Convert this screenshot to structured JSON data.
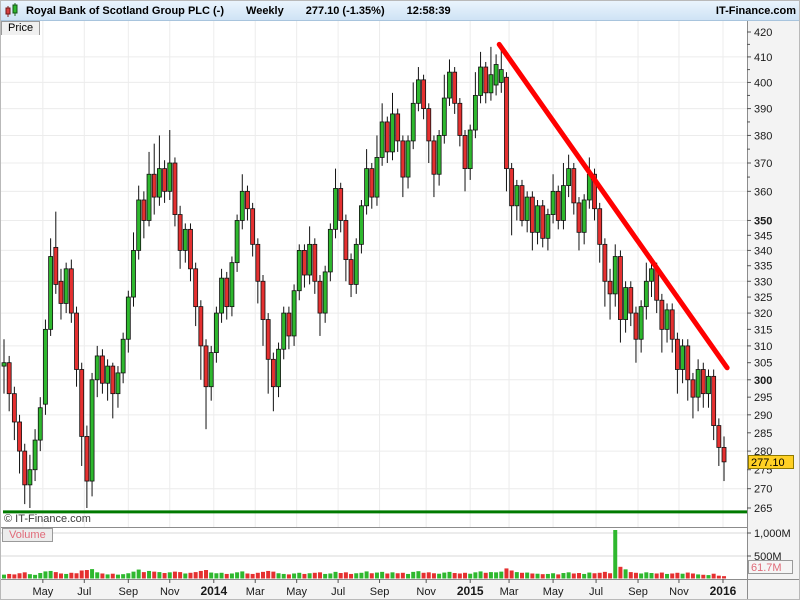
{
  "header": {
    "icon": "candlestick-icon",
    "title": "Royal Bank of Scotland Group PLC (-)",
    "timeframe": "Weekly",
    "quote": "277.10 (-1.35%)",
    "time": "12:58:39",
    "brand": "IT-Finance.com"
  },
  "tabs": {
    "price": "Price",
    "volume": "Volume"
  },
  "watermark": "© IT-Finance.com",
  "price_axis": {
    "current": {
      "label": "277.10",
      "value": 277.1
    },
    "labels": [
      {
        "v": 420
      },
      {
        "v": 410
      },
      {
        "v": 400
      },
      {
        "v": 390
      },
      {
        "v": 380
      },
      {
        "v": 370
      },
      {
        "v": 360
      },
      {
        "v": 350,
        "bold": true
      },
      {
        "v": 345
      },
      {
        "v": 340
      },
      {
        "v": 335
      },
      {
        "v": 330
      },
      {
        "v": 325
      },
      {
        "v": 320
      },
      {
        "v": 315
      },
      {
        "v": 310
      },
      {
        "v": 305
      },
      {
        "v": 300,
        "bold": true
      },
      {
        "v": 295
      },
      {
        "v": 290
      },
      {
        "v": 285
      },
      {
        "v": 280
      },
      {
        "v": 275
      },
      {
        "v": 270
      },
      {
        "v": 265
      }
    ],
    "minor_ticks": [
      415,
      405,
      395,
      385,
      375,
      365
    ],
    "gridlines": [
      410,
      400,
      390,
      380,
      370,
      360,
      350,
      340,
      330,
      320,
      310,
      300,
      290,
      280,
      270
    ]
  },
  "x_axis": {
    "ticks": [
      {
        "label": "May",
        "week": 7.5
      },
      {
        "label": "Jul",
        "week": 15.5
      },
      {
        "label": "Sep",
        "week": 24
      },
      {
        "label": "Nov",
        "week": 32
      },
      {
        "label": "2014",
        "week": 40.5,
        "bold": true
      },
      {
        "label": "Mar",
        "week": 48.5
      },
      {
        "label": "May",
        "week": 56.5
      },
      {
        "label": "Jul",
        "week": 64.5
      },
      {
        "label": "Sep",
        "week": 72.5
      },
      {
        "label": "Nov",
        "week": 81.5
      },
      {
        "label": "2015",
        "week": 90,
        "bold": true
      },
      {
        "label": "Mar",
        "week": 97.5
      },
      {
        "label": "May",
        "week": 106
      },
      {
        "label": "Jul",
        "week": 114.3
      },
      {
        "label": "Sep",
        "week": 122.4
      },
      {
        "label": "Nov",
        "week": 130.3
      },
      {
        "label": "2016",
        "week": 138.8,
        "bold": true
      }
    ]
  },
  "volume_axis": {
    "ticks": [
      {
        "label": "1,000M",
        "value": 1000
      },
      {
        "label": "500M",
        "value": 500
      }
    ],
    "current": {
      "label": "61.7M",
      "value": 61.7
    }
  },
  "colors": {
    "up": "#2eb82e",
    "down": "#e53030",
    "candle_stroke": "#111111",
    "trend": "#ff0000",
    "support": "#007a00",
    "grid": "#ececec",
    "vol_grid": "#d9d9d9",
    "axis_bg": "#f3f3f3",
    "divider": "#8c8c8c",
    "tick": "#555555",
    "label": "#1a1a1a"
  },
  "chart_data": {
    "type": "candlestick",
    "title": "Royal Bank of Scotland Group PLC - Weekly",
    "period": "Apr 2013 - Jan 2016",
    "yscale": "log",
    "ylim": [
      263,
      422
    ],
    "last_close": 277.1,
    "support_line_price": 264,
    "trend_line": {
      "week1": 95.6,
      "price1": 415,
      "week2": 139.6,
      "price2": 303.5
    },
    "volume_ylim_m": [
      0,
      1100
    ],
    "last_volume_m": 61.7,
    "candles_ohlc": [
      [
        304,
        312,
        296,
        305
      ],
      [
        305,
        307,
        291,
        296
      ],
      [
        296,
        298,
        283,
        288
      ],
      [
        288,
        290,
        274,
        280
      ],
      [
        280,
        282,
        266,
        271
      ],
      [
        271,
        279,
        265,
        275
      ],
      [
        275,
        286,
        272,
        283
      ],
      [
        283,
        295,
        280,
        292
      ],
      [
        293,
        318,
        290,
        315
      ],
      [
        315,
        344,
        313,
        338
      ],
      [
        341,
        353,
        326,
        329
      ],
      [
        330,
        334,
        318,
        323
      ],
      [
        323,
        336,
        320,
        334
      ],
      [
        334,
        337,
        317,
        320
      ],
      [
        320,
        322,
        298,
        303
      ],
      [
        303,
        305,
        276,
        284
      ],
      [
        284,
        287,
        265,
        272
      ],
      [
        272,
        302,
        268,
        300
      ],
      [
        300,
        310,
        295,
        307
      ],
      [
        307,
        309,
        296,
        299
      ],
      [
        299,
        306,
        294,
        304
      ],
      [
        304,
        305,
        289,
        296
      ],
      [
        296,
        304,
        292,
        302
      ],
      [
        302,
        314,
        299,
        312
      ],
      [
        312,
        327,
        308,
        325
      ],
      [
        325,
        346,
        322,
        340
      ],
      [
        340,
        362,
        337,
        357
      ],
      [
        357,
        360,
        344,
        350
      ],
      [
        350,
        374,
        348,
        366
      ],
      [
        366,
        377,
        352,
        358
      ],
      [
        358,
        380,
        355,
        368
      ],
      [
        368,
        371,
        356,
        360
      ],
      [
        360,
        382,
        357,
        370
      ],
      [
        370,
        372,
        348,
        352
      ],
      [
        352,
        355,
        334,
        340
      ],
      [
        340,
        349,
        336,
        347
      ],
      [
        347,
        349,
        330,
        334
      ],
      [
        334,
        336,
        316,
        322
      ],
      [
        322,
        324,
        300,
        310
      ],
      [
        310,
        312,
        286,
        298
      ],
      [
        298,
        310,
        294,
        308
      ],
      [
        308,
        322,
        305,
        320
      ],
      [
        320,
        334,
        317,
        331
      ],
      [
        331,
        333,
        318,
        322
      ],
      [
        322,
        338,
        319,
        336
      ],
      [
        336,
        352,
        333,
        350
      ],
      [
        350,
        366,
        347,
        360
      ],
      [
        360,
        362,
        350,
        354
      ],
      [
        354,
        356,
        338,
        342
      ],
      [
        342,
        344,
        323,
        330
      ],
      [
        330,
        332,
        310,
        318
      ],
      [
        318,
        320,
        296,
        306
      ],
      [
        306,
        308,
        291,
        298
      ],
      [
        298,
        311,
        295,
        309
      ],
      [
        309,
        322,
        306,
        320
      ],
      [
        320,
        322,
        309,
        313
      ],
      [
        313,
        329,
        310,
        327
      ],
      [
        327,
        342,
        324,
        340
      ],
      [
        340,
        342,
        328,
        332
      ],
      [
        332,
        348,
        329,
        342
      ],
      [
        342,
        344,
        326,
        330
      ],
      [
        330,
        332,
        313,
        320
      ],
      [
        320,
        335,
        317,
        333
      ],
      [
        333,
        349,
        330,
        347
      ],
      [
        347,
        368,
        344,
        361
      ],
      [
        361,
        363,
        346,
        350
      ],
      [
        350,
        352,
        330,
        337
      ],
      [
        337,
        339,
        325,
        329
      ],
      [
        329,
        344,
        326,
        342
      ],
      [
        342,
        357,
        339,
        355
      ],
      [
        355,
        375,
        352,
        368
      ],
      [
        368,
        370,
        354,
        358
      ],
      [
        358,
        380,
        355,
        372
      ],
      [
        372,
        392,
        369,
        385
      ],
      [
        385,
        387,
        370,
        374
      ],
      [
        374,
        396,
        371,
        388
      ],
      [
        388,
        390,
        374,
        378
      ],
      [
        378,
        380,
        358,
        365
      ],
      [
        365,
        380,
        361,
        378
      ],
      [
        378,
        400,
        375,
        392
      ],
      [
        392,
        406,
        389,
        401
      ],
      [
        401,
        403,
        386,
        390
      ],
      [
        390,
        392,
        370,
        378
      ],
      [
        378,
        380,
        358,
        366
      ],
      [
        366,
        382,
        362,
        380
      ],
      [
        380,
        403,
        377,
        394
      ],
      [
        394,
        409,
        391,
        404
      ],
      [
        404,
        406,
        388,
        392
      ],
      [
        392,
        394,
        376,
        380
      ],
      [
        380,
        382,
        360,
        368
      ],
      [
        368,
        384,
        364,
        382
      ],
      [
        382,
        404,
        379,
        395
      ],
      [
        395,
        412,
        392,
        406
      ],
      [
        406,
        408,
        392,
        396
      ],
      [
        396,
        414,
        393,
        403
      ],
      [
        399,
        411,
        395,
        407
      ],
      [
        400,
        414,
        396,
        405
      ],
      [
        402,
        404,
        360,
        368
      ],
      [
        368,
        370,
        345,
        355
      ],
      [
        355,
        364,
        350,
        362
      ],
      [
        362,
        364,
        348,
        350
      ],
      [
        350,
        360,
        346,
        358
      ],
      [
        358,
        360,
        340,
        346
      ],
      [
        346,
        357,
        342,
        355
      ],
      [
        355,
        357,
        341,
        344
      ],
      [
        344,
        354,
        340,
        352
      ],
      [
        352,
        366,
        349,
        360
      ],
      [
        360,
        362,
        347,
        350
      ],
      [
        350,
        370,
        347,
        362
      ],
      [
        362,
        373,
        358,
        368
      ],
      [
        368,
        370,
        352,
        356
      ],
      [
        356,
        358,
        340,
        346
      ],
      [
        346,
        359,
        342,
        357
      ],
      [
        357,
        372,
        354,
        366
      ],
      [
        366,
        368,
        350,
        354
      ],
      [
        354,
        356,
        336,
        342
      ],
      [
        342,
        344,
        322,
        330
      ],
      [
        330,
        334,
        318,
        326
      ],
      [
        326,
        342,
        322,
        338
      ],
      [
        338,
        340,
        311,
        318
      ],
      [
        318,
        330,
        314,
        328
      ],
      [
        328,
        330,
        316,
        320
      ],
      [
        320,
        322,
        305,
        312
      ],
      [
        312,
        324,
        308,
        322
      ],
      [
        322,
        336,
        318,
        330
      ],
      [
        330,
        338,
        325,
        334
      ],
      [
        334,
        336,
        320,
        324
      ],
      [
        324,
        326,
        308,
        315
      ],
      [
        315,
        323,
        311,
        321
      ],
      [
        321,
        323,
        308,
        312
      ],
      [
        312,
        314,
        296,
        303
      ],
      [
        303,
        312,
        299,
        310
      ],
      [
        310,
        312,
        294,
        300
      ],
      [
        300,
        302,
        289,
        295
      ],
      [
        295,
        306,
        291,
        303
      ],
      [
        303,
        305,
        292,
        296
      ],
      [
        296,
        303,
        292,
        301
      ],
      [
        301,
        303,
        283,
        287
      ],
      [
        287,
        289,
        276,
        281
      ],
      [
        281,
        284,
        272,
        277.1
      ]
    ],
    "volumes_m": [
      95,
      110,
      100,
      125,
      145,
      105,
      90,
      130,
      165,
      175,
      150,
      120,
      110,
      135,
      125,
      185,
      195,
      215,
      145,
      120,
      100,
      115,
      95,
      105,
      125,
      160,
      205,
      150,
      175,
      160,
      150,
      130,
      145,
      160,
      150,
      120,
      135,
      150,
      175,
      195,
      140,
      125,
      135,
      110,
      120,
      145,
      165,
      120,
      110,
      135,
      155,
      175,
      160,
      125,
      110,
      100,
      120,
      135,
      110,
      125,
      135,
      145,
      110,
      120,
      155,
      130,
      145,
      110,
      125,
      135,
      165,
      125,
      140,
      155,
      120,
      145,
      125,
      135,
      110,
      155,
      170,
      135,
      145,
      125,
      115,
      140,
      155,
      130,
      120,
      135,
      115,
      145,
      165,
      135,
      150,
      145,
      160,
      230,
      185,
      150,
      135,
      140,
      120,
      115,
      105,
      110,
      125,
      100,
      130,
      145,
      120,
      130,
      110,
      140,
      125,
      135,
      155,
      125,
      1065,
      265,
      210,
      150,
      135,
      120,
      145,
      130,
      120,
      140,
      110,
      120,
      135,
      115,
      140,
      120,
      100,
      92,
      85,
      115,
      72,
      62
    ]
  }
}
